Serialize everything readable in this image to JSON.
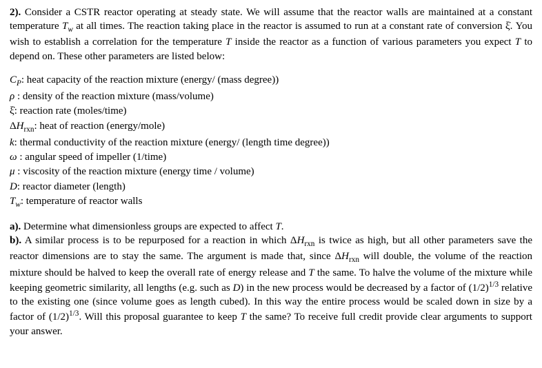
{
  "typography": {
    "font_family": "Times New Roman",
    "body_fontsize_pt": 11,
    "line_height": 1.35,
    "text_color": "#000000",
    "background_color": "#ffffff",
    "text_align": "justify"
  },
  "problem": {
    "number": "2).",
    "intro_a": "Consider a CSTR reactor operating at steady state. We will assume that the reactor walls are maintained at a constant temperature ",
    "Tw_sym_T": "T",
    "Tw_sym_w": "w",
    "intro_b": " at all times. The reaction taking place in the reactor is assumed to run at a constant rate of conversion ",
    "xi_dot": "ξ̇",
    "intro_c": ". You wish to establish a correlation for the temperature ",
    "T_sym": "T",
    "intro_d": " inside the reactor as a function of various parameters you expect ",
    "intro_e": " to depend on. These other parameters are listed below:"
  },
  "params": [
    {
      "sym_html": "<span class='ital'>C<span class='sub'>P</span></span>",
      "desc": ": heat capacity of the reaction mixture (energy/ (mass degree))"
    },
    {
      "sym_html": "<span class='ital'>ρ</span> ",
      "desc": ": density of the reaction mixture (mass/volume)"
    },
    {
      "sym_html": "ξ̇",
      "desc": ": reaction rate (moles/time)"
    },
    {
      "sym_html": "Δ<span class='ital'>H</span><span class='sub'>rxn</span>",
      "desc": ": heat of reaction (energy/mole)"
    },
    {
      "sym_html": "<span class='ital'>k</span>",
      "desc": ": thermal conductivity of the reaction mixture (energy/ (length time degree))"
    },
    {
      "sym_html": "<span class='ital'>ω</span> ",
      "desc": ": angular speed of impeller (1/time)"
    },
    {
      "sym_html": "<span class='ital'>μ</span> ",
      "desc": ": viscosity of the reaction mixture (energy time / volume)"
    },
    {
      "sym_html": "<span class='ital'>D</span>",
      "desc": ": reactor diameter (length)"
    },
    {
      "sym_html": "<span class='ital'>T<span class='sub'>w</span></span>",
      "desc": ": temperature of reactor walls"
    }
  ],
  "parts": {
    "a_label": "a).",
    "a_text": " Determine what dimensionless groups are expected to affect ",
    "a_T": "T",
    "a_period": ".",
    "b_label": "b).",
    "b_1": " A similar process is to be repurposed for a reaction in which Δ",
    "b_H": "H",
    "b_rxn": "rxn",
    "b_2": " is twice as high, but all other parameters save the reactor dimensions are to stay the same. The argument is made that, since Δ",
    "b_3": " will double, the volume of the reaction mixture should be halved to keep the overall rate of energy release and ",
    "b_T": "T",
    "b_4": " the same. To halve the volume of the mixture while keeping geometric similarity, all lengths (e.g. such as ",
    "b_D": "D",
    "b_5": ") in the new process would be decreased by a factor of (1/2)",
    "b_exp": "1/3",
    "b_6": " relative to the existing one (since volume goes as length cubed). In this way the entire process would be scaled down in size by a factor of (1/2)",
    "b_7": ". Will this proposal guarantee to keep ",
    "b_8": " the same? To receive full credit provide clear arguments to support your answer."
  }
}
